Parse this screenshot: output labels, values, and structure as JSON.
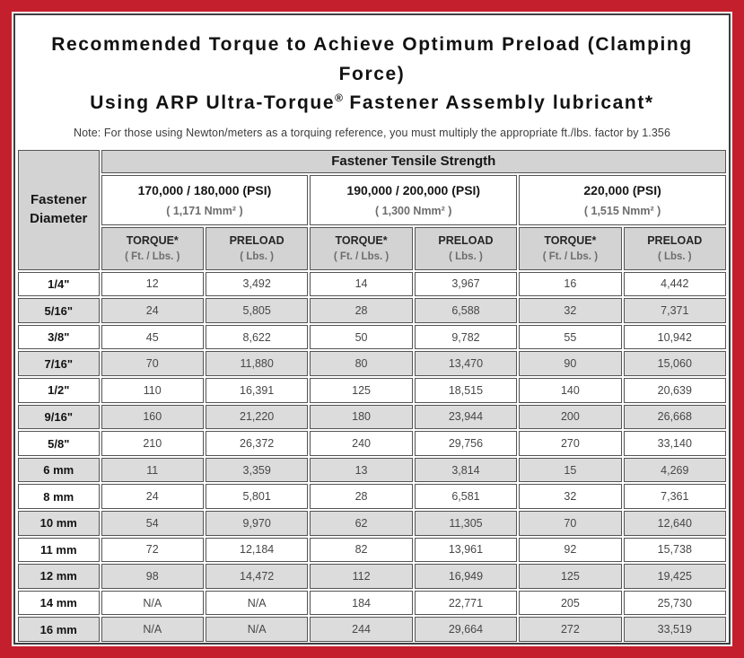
{
  "title": {
    "line1": "Recommended Torque to Achieve Optimum Preload (Clamping Force)",
    "line2_pre": "Using ARP Ultra-Torque",
    "registered_mark": "®",
    "line2_post": " Fastener Assembly lubricant*"
  },
  "note": "Note: For those using Newton/meters as a torquing reference, you must multiply the appropriate ft./lbs. factor by 1.356",
  "table": {
    "corner_header": "Fastener Diameter",
    "tensile_header": "Fastener Tensile Strength",
    "groups": [
      {
        "psi": "170,000 / 180,000 (PSI)",
        "nmm": "( 1,171 Nmm² )"
      },
      {
        "psi": "190,000 / 200,000 (PSI)",
        "nmm": "( 1,300 Nmm² )"
      },
      {
        "psi": "220,000 (PSI)",
        "nmm": "( 1,515 Nmm² )"
      }
    ],
    "subcolumns": [
      {
        "label": "TORQUE*",
        "unit": "( Ft. / Lbs. )"
      },
      {
        "label": "PRELOAD",
        "unit": "( Lbs. )"
      },
      {
        "label": "TORQUE*",
        "unit": "( Ft. / Lbs. )"
      },
      {
        "label": "PRELOAD",
        "unit": "( Lbs. )"
      },
      {
        "label": "TORQUE*",
        "unit": "( Ft. / Lbs. )"
      },
      {
        "label": "PRELOAD",
        "unit": "( Lbs. )"
      }
    ],
    "rows": [
      {
        "diameter": "1/4\"",
        "values": [
          "12",
          "3,492",
          "14",
          "3,967",
          "16",
          "4,442"
        ]
      },
      {
        "diameter": "5/16\"",
        "values": [
          "24",
          "5,805",
          "28",
          "6,588",
          "32",
          "7,371"
        ]
      },
      {
        "diameter": "3/8\"",
        "values": [
          "45",
          "8,622",
          "50",
          "9,782",
          "55",
          "10,942"
        ]
      },
      {
        "diameter": "7/16\"",
        "values": [
          "70",
          "11,880",
          "80",
          "13,470",
          "90",
          "15,060"
        ]
      },
      {
        "diameter": "1/2\"",
        "values": [
          "110",
          "16,391",
          "125",
          "18,515",
          "140",
          "20,639"
        ]
      },
      {
        "diameter": "9/16\"",
        "values": [
          "160",
          "21,220",
          "180",
          "23,944",
          "200",
          "26,668"
        ]
      },
      {
        "diameter": "5/8\"",
        "values": [
          "210",
          "26,372",
          "240",
          "29,756",
          "270",
          "33,140"
        ]
      },
      {
        "diameter": "6 mm",
        "values": [
          "11",
          "3,359",
          "13",
          "3,814",
          "15",
          "4,269"
        ]
      },
      {
        "diameter": "8 mm",
        "values": [
          "24",
          "5,801",
          "28",
          "6,581",
          "32",
          "7,361"
        ]
      },
      {
        "diameter": "10 mm",
        "values": [
          "54",
          "9,970",
          "62",
          "11,305",
          "70",
          "12,640"
        ]
      },
      {
        "diameter": "11 mm",
        "values": [
          "72",
          "12,184",
          "82",
          "13,961",
          "92",
          "15,738"
        ]
      },
      {
        "diameter": "12 mm",
        "values": [
          "98",
          "14,472",
          "112",
          "16,949",
          "125",
          "19,425"
        ]
      },
      {
        "diameter": "14 mm",
        "values": [
          "N/A",
          "N/A",
          "184",
          "22,771",
          "205",
          "25,730"
        ]
      },
      {
        "diameter": "16 mm",
        "values": [
          "N/A",
          "N/A",
          "244",
          "29,664",
          "272",
          "33,519"
        ]
      }
    ]
  },
  "colors": {
    "frame_red": "#c41f2c",
    "header_gray": "#d3d3d3",
    "row_alt_gray": "#dcdcdc",
    "cell_border": "#545454"
  }
}
